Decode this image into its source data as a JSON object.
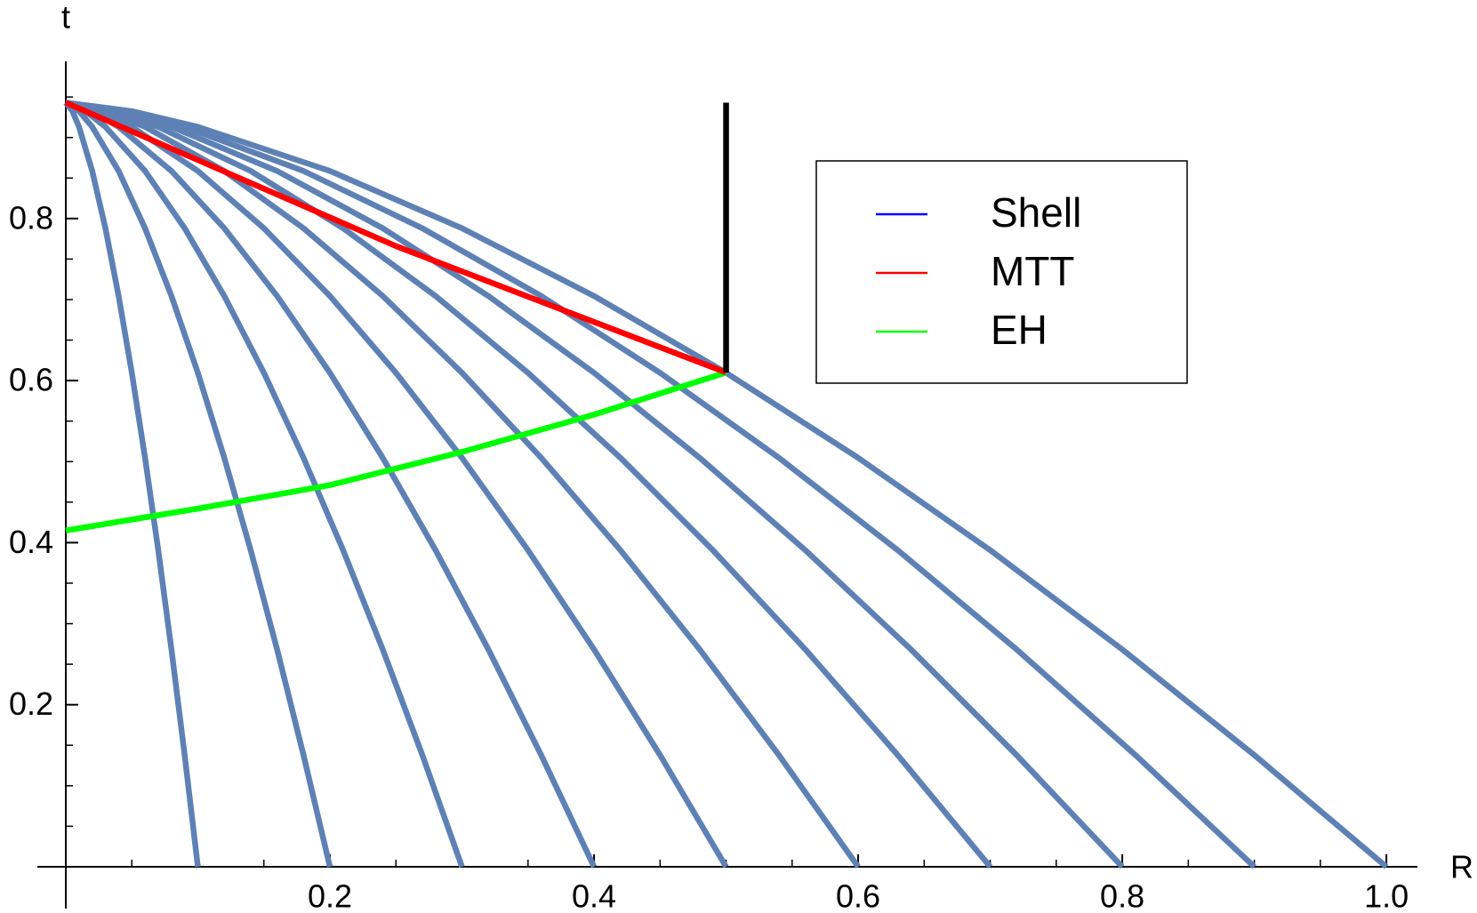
{
  "chart_data": {
    "type": "line",
    "xlabel": "R",
    "ylabel": "t",
    "xlim": [
      0,
      1.0235
    ],
    "ylim": [
      0,
      0.994
    ],
    "xticks": [
      0.2,
      0.4,
      0.6,
      0.8,
      {
        "value": 1,
        "label": "1.0"
      }
    ],
    "yticks": [
      0.2,
      0.4,
      0.6,
      0.8
    ],
    "x_minor_ticks": [
      0.05,
      0.1,
      0.15,
      0.25,
      0.3,
      0.35,
      0.45,
      0.5,
      0.55,
      0.65,
      0.7,
      0.75,
      0.85,
      0.9,
      0.95
    ],
    "y_minor_ticks": [
      0.05,
      0.1,
      0.15,
      0.25,
      0.3,
      0.35,
      0.45,
      0.5,
      0.55,
      0.65,
      0.7,
      0.75,
      0.85,
      0.9,
      0.95
    ],
    "legend": "upper right",
    "series": [
      {
        "name": "Shell",
        "color": "#5e81b5",
        "legend_color": "#0000ff",
        "values": [
          0.943,
          0.9325,
          0.9132,
          0.8587,
          0.788,
          0.7044,
          0.6096,
          0.5047,
          0.3907,
          0.2682,
          0.1378,
          0
        ],
        "curves": [
          {
            "x": [
              0,
              0.005,
              0.01,
              0.02,
              0.03,
              0.04,
              0.05,
              0.06,
              0.07,
              0.08,
              0.09,
              0.1
            ]
          },
          {
            "x": [
              0,
              0.01,
              0.02,
              0.04,
              0.06,
              0.08,
              0.1,
              0.12,
              0.14,
              0.16,
              0.18,
              0.2
            ]
          },
          {
            "x": [
              0,
              0.015,
              0.03,
              0.06,
              0.09,
              0.12,
              0.15,
              0.18,
              0.21,
              0.24,
              0.27,
              0.3
            ]
          },
          {
            "x": [
              0,
              0.02,
              0.04,
              0.08,
              0.12,
              0.16,
              0.2,
              0.24,
              0.28,
              0.32,
              0.36,
              0.4
            ]
          },
          {
            "x": [
              0,
              0.025,
              0.05,
              0.1,
              0.15,
              0.2,
              0.25,
              0.3,
              0.35,
              0.4,
              0.45,
              0.5
            ]
          },
          {
            "x": [
              0,
              0.03,
              0.06,
              0.12,
              0.18,
              0.24,
              0.3,
              0.36,
              0.42,
              0.48,
              0.54,
              0.6
            ]
          },
          {
            "x": [
              0,
              0.035,
              0.07,
              0.14,
              0.21,
              0.28,
              0.35,
              0.42,
              0.49,
              0.56,
              0.63,
              0.7
            ]
          },
          {
            "x": [
              0,
              0.04,
              0.08,
              0.16,
              0.24,
              0.32,
              0.4,
              0.48,
              0.56,
              0.64,
              0.72,
              0.8
            ]
          },
          {
            "x": [
              0,
              0.045,
              0.09,
              0.18,
              0.27,
              0.36,
              0.45,
              0.54,
              0.63,
              0.72,
              0.81,
              0.9
            ]
          },
          {
            "x": [
              0,
              0.05,
              0.1,
              0.2,
              0.3,
              0.4,
              0.5,
              0.6,
              0.7,
              0.8,
              0.9,
              1
            ]
          }
        ]
      },
      {
        "name": "MTT",
        "color": "#ff0000",
        "x": [
          0,
          0.25,
          0.5
        ],
        "values": [
          0.943,
          0.766,
          0.61
        ]
      },
      {
        "name": "EH",
        "color": "#00ff00",
        "x": [
          0,
          0.1,
          0.2,
          0.3,
          0.4,
          0.5
        ],
        "values": [
          0.415,
          0.442,
          0.471,
          0.512,
          0.558,
          0.61
        ]
      }
    ],
    "boundary": {
      "color": "#000000",
      "x": [
        0.5,
        0.5
      ],
      "values": [
        0.61,
        0.943
      ]
    }
  }
}
